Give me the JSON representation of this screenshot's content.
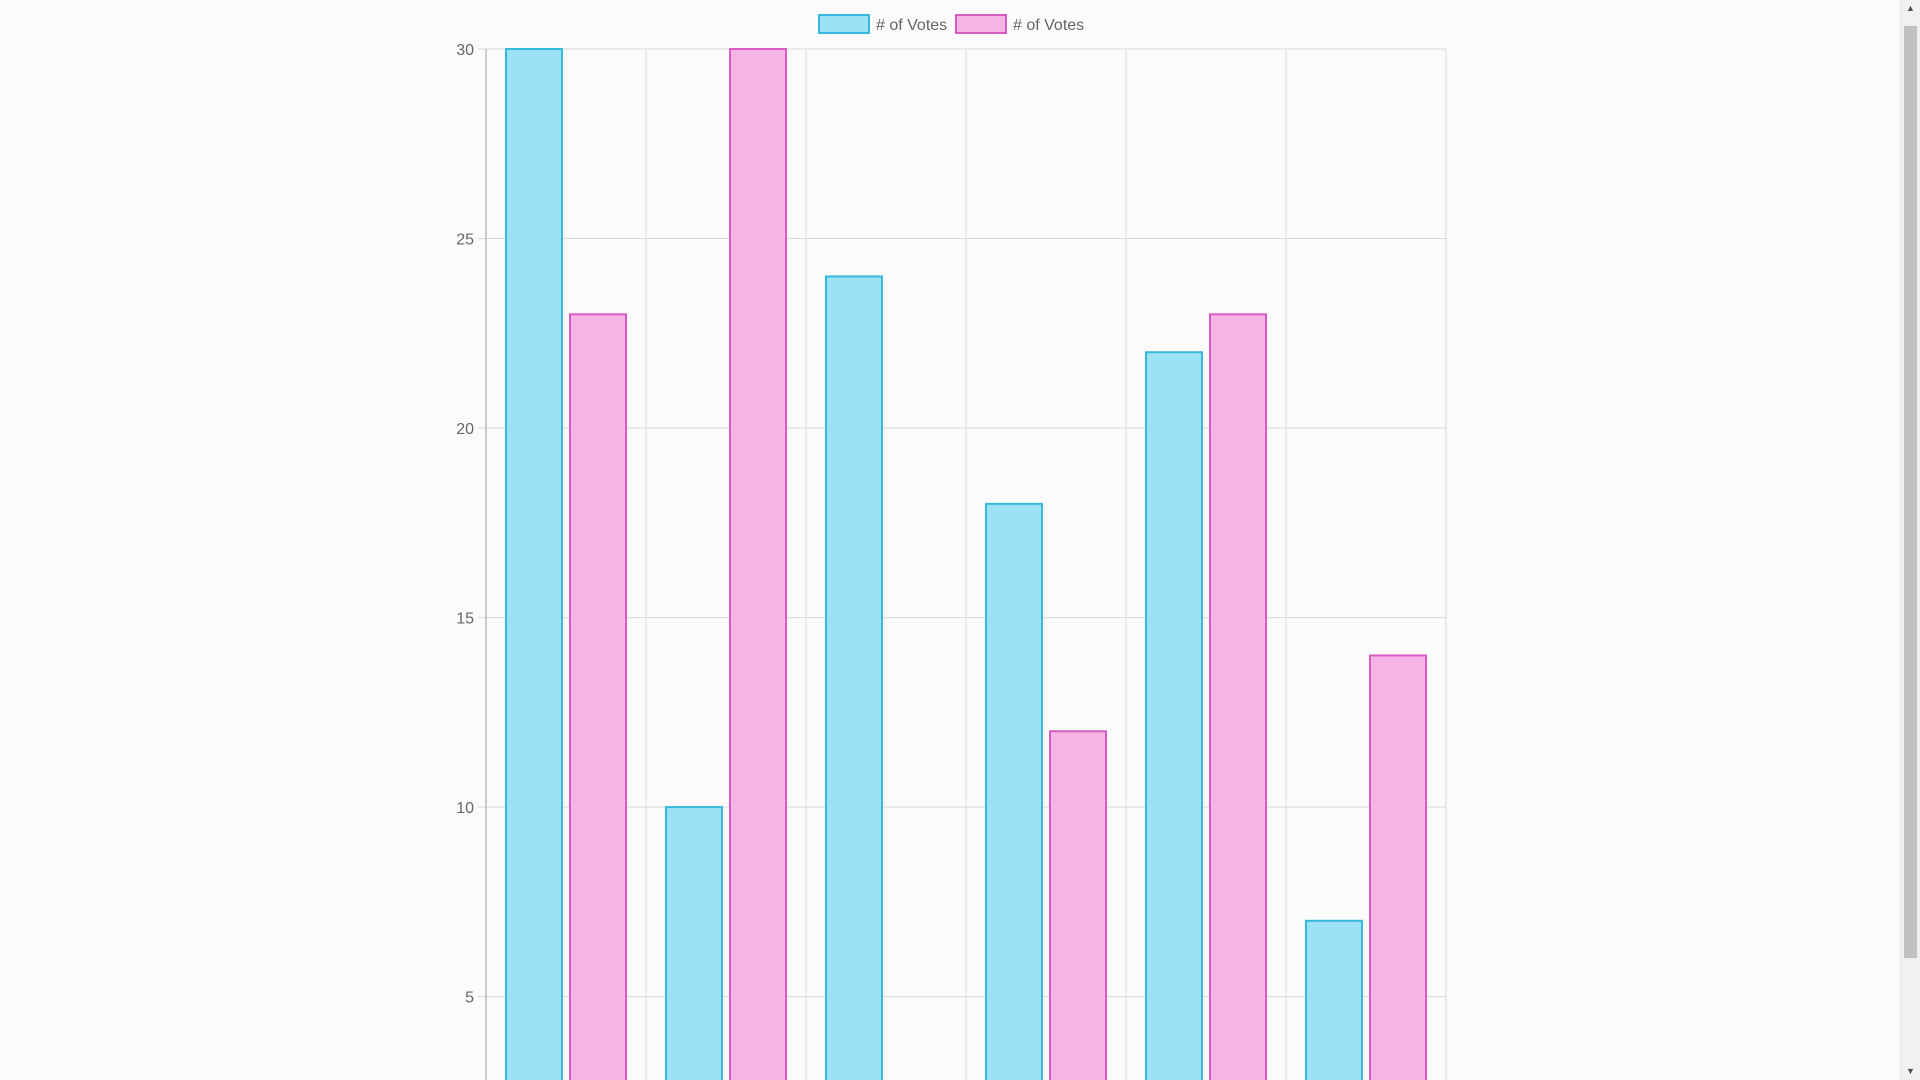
{
  "chart_data": {
    "type": "bar",
    "title": "",
    "xlabel": "",
    "ylabel": "",
    "categories": [
      "",
      "",
      "",
      "",
      "",
      ""
    ],
    "series": [
      {
        "name": "# of Votes",
        "values": [
          30,
          10,
          24,
          18,
          22,
          7
        ],
        "fill": "#9ce1f4",
        "stroke": "#36b9dc"
      },
      {
        "name": "# of Votes",
        "values": [
          23,
          30,
          0,
          12,
          23,
          14
        ],
        "fill": "#f6b5e6",
        "stroke": "#d85bc2"
      }
    ],
    "ylim": [
      0,
      30
    ],
    "visible_y_min": 2.8,
    "y_ticks": [
      5,
      10,
      15,
      20,
      25,
      30
    ],
    "grid": true,
    "legend_position": "top-center"
  },
  "colors": {
    "background": "#fbfbfb",
    "grid": "#d9d9d9",
    "axis": "#bdbdbd",
    "tick_text": "#666666"
  },
  "scrollbar": {
    "up_icon": "▲",
    "down_icon": "▼"
  }
}
